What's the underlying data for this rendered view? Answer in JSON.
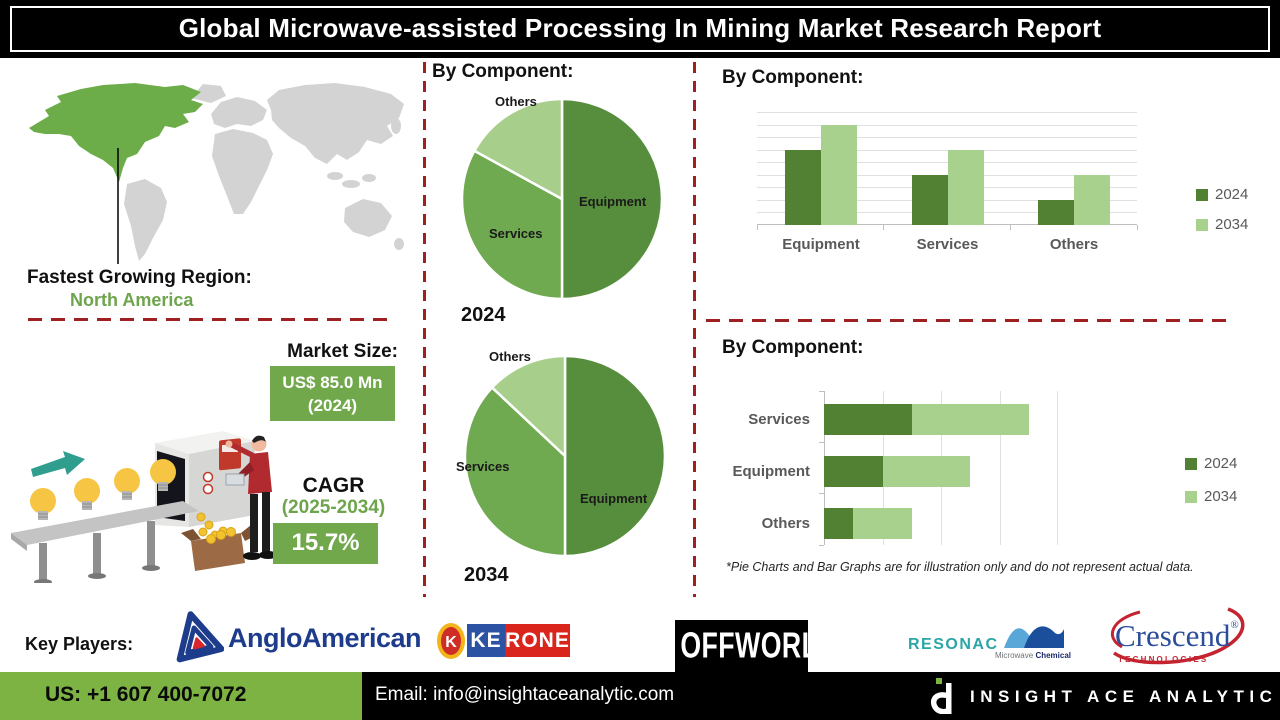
{
  "header": {
    "title": "Global Microwave-assisted Processing In Mining Market Research Report"
  },
  "map_section": {
    "region_label": "Fastest Growing Region:",
    "region_value": "North America",
    "highlight_color": "#6cad49",
    "land_color": "#d3d3d3"
  },
  "market": {
    "size_label": "Market Size:",
    "size_value": "US$ 85.0 Mn",
    "size_year": "(2024)",
    "cagr_label": "CAGR",
    "cagr_period": "(2025-2034)",
    "cagr_value": "15.7%"
  },
  "note": "*Pie Charts and Bar Graphs are for illustration only and do not represent actual data.",
  "key_players": {
    "label": "Key Players:",
    "anglo_american": "AngloAmerican",
    "kerone_ke": "KE",
    "kerone_rone": "RONE",
    "offworld": "OFFWORLD",
    "resonac": "RESONAC",
    "microwave_word1": "Microwave",
    "microwave_word2": "Chemical",
    "crescend": "Crescend",
    "crescend_reg": "®",
    "crescend_sub": "TECHNOLOGIES"
  },
  "footer": {
    "phone": "US: +1 607 400-7072",
    "email": "Email: info@insightaceanalytic.com",
    "brand": "INSIGHT ACE ANALYTIC"
  },
  "colors": {
    "series_2024": "#538134",
    "series_2034": "#a9d18e",
    "dashed_divider": "#9e2020",
    "green_box": "#70a84b",
    "footer_green": "#7cb342"
  },
  "chart_data": [
    {
      "type": "pie",
      "title": "By Component:",
      "year_label": "2024",
      "labels": [
        "Equipment",
        "Services",
        "Others"
      ],
      "values": [
        50,
        33,
        17
      ],
      "colors": [
        "#578e3e",
        "#6fa950",
        "#a8ce8c"
      ]
    },
    {
      "type": "pie",
      "title": "By Component:",
      "year_label": "2034",
      "labels": [
        "Equipment",
        "Services",
        "Others"
      ],
      "values": [
        50,
        37,
        13
      ],
      "colors": [
        "#578e3e",
        "#6fa950",
        "#a8ce8c"
      ]
    },
    {
      "type": "bar",
      "title": "By Component:",
      "categories": [
        "Equipment",
        "Services",
        "Others"
      ],
      "series": [
        {
          "name": "2024",
          "color": "#538134",
          "values": [
            6,
            4,
            2
          ]
        },
        {
          "name": "2034",
          "color": "#a9d18e",
          "values": [
            8,
            6,
            4
          ]
        }
      ],
      "ylim": [
        0,
        9
      ],
      "grid": true,
      "legend_position": "right"
    },
    {
      "type": "bar",
      "orientation": "horizontal",
      "stacked": true,
      "title": "By Component:",
      "categories": [
        "Services",
        "Equipment",
        "Others"
      ],
      "series": [
        {
          "name": "2024",
          "color": "#538134",
          "values": [
            1.5,
            1.0,
            0.5
          ]
        },
        {
          "name": "2034",
          "color": "#a9d18e",
          "values": [
            2.0,
            1.5,
            1.0
          ]
        }
      ],
      "xlim": [
        0,
        4
      ],
      "grid": true,
      "legend_position": "right"
    }
  ]
}
